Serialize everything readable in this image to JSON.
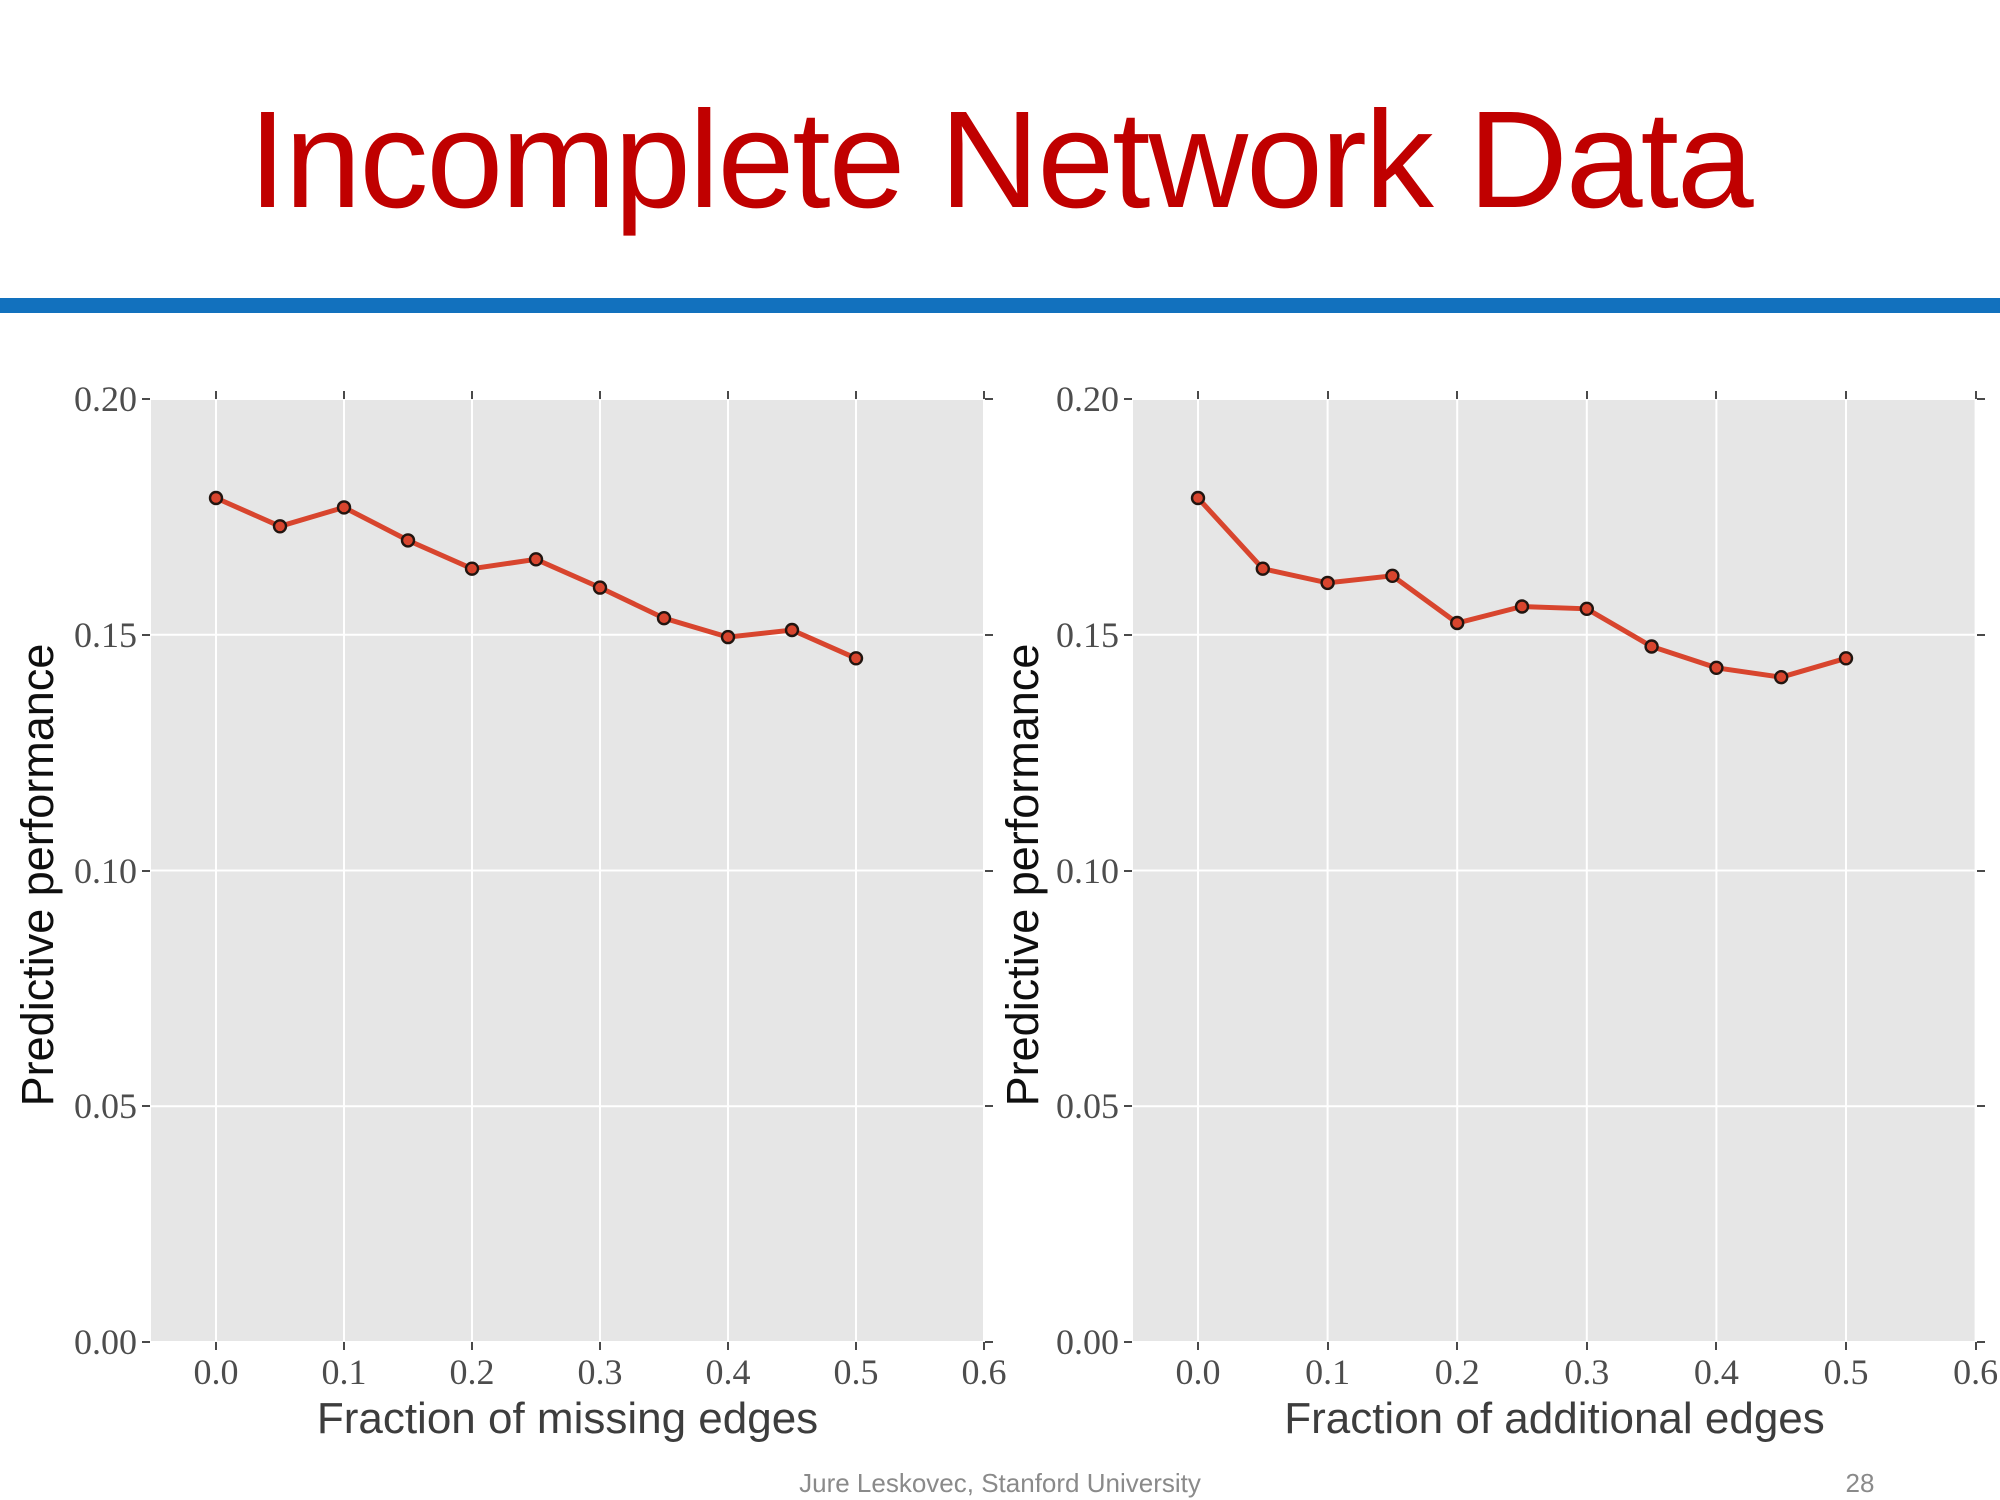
{
  "slide": {
    "title": "Incomplete Network Data",
    "title_color": "#C00000",
    "divider_color": "#1271BE",
    "footer": "Jure Leskovec, Stanford University",
    "page_number": "28"
  },
  "chart_data": [
    {
      "type": "line",
      "name": "left-chart",
      "title": "",
      "xlabel": "Fraction of missing edges",
      "ylabel": "Predictive performance",
      "x": [
        0.0,
        0.05,
        0.1,
        0.15,
        0.2,
        0.25,
        0.3,
        0.35,
        0.4,
        0.45,
        0.5
      ],
      "y": [
        0.179,
        0.173,
        0.177,
        0.17,
        0.164,
        0.166,
        0.16,
        0.1535,
        0.1495,
        0.151,
        0.145
      ],
      "xticks": [
        "0.0",
        "0.1",
        "0.2",
        "0.3",
        "0.4",
        "0.5",
        "0.6"
      ],
      "yticks": [
        "0.00",
        "0.05",
        "0.10",
        "0.15",
        "0.20"
      ],
      "xlim": [
        -0.05,
        0.6
      ],
      "ylim": [
        0,
        0.2
      ],
      "grid": true,
      "legend": null,
      "line_color": "#D8452E",
      "marker_edge_color": "#211510",
      "panel_bg": "#E6E6E6",
      "grid_color": "#FFFFFF"
    },
    {
      "type": "line",
      "name": "right-chart",
      "title": "",
      "xlabel": "Fraction of additional edges",
      "ylabel": "Predictive performance",
      "x": [
        0.0,
        0.05,
        0.1,
        0.15,
        0.2,
        0.25,
        0.3,
        0.35,
        0.4,
        0.45,
        0.5
      ],
      "y": [
        0.179,
        0.164,
        0.161,
        0.1625,
        0.1525,
        0.156,
        0.1555,
        0.1475,
        0.143,
        0.141,
        0.145
      ],
      "xticks": [
        "0.0",
        "0.1",
        "0.2",
        "0.3",
        "0.4",
        "0.5",
        "0.6"
      ],
      "yticks": [
        "0.00",
        "0.05",
        "0.10",
        "0.15",
        "0.20"
      ],
      "xlim": [
        -0.05,
        0.6
      ],
      "ylim": [
        0,
        0.2
      ],
      "grid": true,
      "legend": null,
      "line_color": "#D8452E",
      "marker_edge_color": "#211510",
      "panel_bg": "#E6E6E6",
      "grid_color": "#FFFFFF"
    }
  ]
}
